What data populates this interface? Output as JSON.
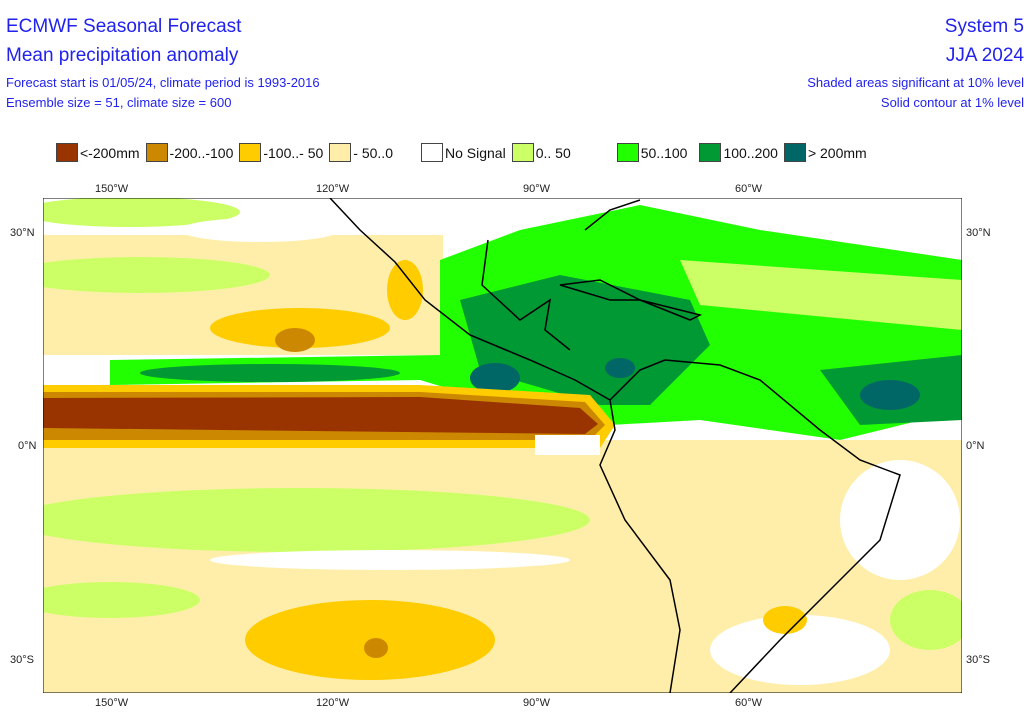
{
  "header": {
    "title": "ECMWF Seasonal Forecast",
    "subtitle": "Mean precipitation anomaly",
    "info1": "Forecast start is 01/05/24, climate period is 1993-2016",
    "info2": "Ensemble size = 51, climate size = 600",
    "system": "System 5",
    "season": "JJA 2024",
    "note1": "Shaded areas significant at 10% level",
    "note2": "Solid contour at 1% level"
  },
  "legend": [
    {
      "label": "<-200mm",
      "color": "#993300"
    },
    {
      "label": "-200..-100",
      "color": "#cc8800"
    },
    {
      "label": "-100..- 50",
      "color": "#ffcc00"
    },
    {
      "label": "- 50..0",
      "color": "#ffeeaa"
    },
    {
      "label": "No Signal",
      "color": "#ffffff"
    },
    {
      "label": "0.. 50",
      "color": "#ccff66"
    },
    {
      "label": "50..100",
      "color": "#22ff00"
    },
    {
      "label": "100..200",
      "color": "#009933"
    },
    {
      "label": "> 200mm",
      "color": "#006666"
    }
  ],
  "axes": {
    "lon": [
      "150°W",
      "120°W",
      "90°W",
      "60°W"
    ],
    "lat": [
      "30°N",
      "0°N",
      "30°S"
    ]
  }
}
